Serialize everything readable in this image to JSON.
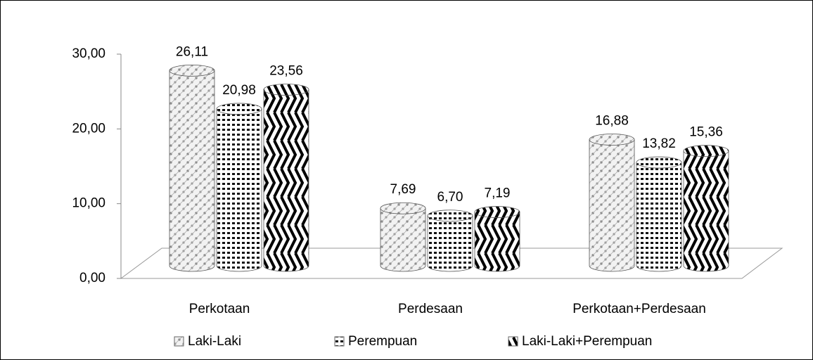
{
  "chart_data": {
    "type": "bar",
    "categories": [
      "Perkotaan",
      "Perdesaan",
      "Perkotaan+Perdesaan"
    ],
    "series": [
      {
        "name": "Laki-Laki",
        "color": "#d9d9d9",
        "values": [
          26.11,
          7.69,
          16.88
        ],
        "value_labels": [
          "26,11",
          "7,69",
          "16,88"
        ]
      },
      {
        "name": "Perempuan",
        "color": "#9a9a9a",
        "values": [
          20.98,
          6.7,
          13.82
        ],
        "value_labels": [
          "20,98",
          "6,70",
          "13,82"
        ]
      },
      {
        "name": "Laki-Laki+Perempuan",
        "color": "#1a1a1a",
        "values": [
          23.56,
          7.19,
          15.36
        ],
        "value_labels": [
          "23,56",
          "7,19",
          "15,36"
        ]
      }
    ],
    "ylim": [
      0,
      30
    ],
    "yticks": [
      {
        "value": 0,
        "label": "0,00"
      },
      {
        "value": 10,
        "label": "10,00"
      },
      {
        "value": 20,
        "label": "20,00"
      },
      {
        "value": 30,
        "label": "30,00"
      }
    ],
    "legend": "bottom"
  }
}
